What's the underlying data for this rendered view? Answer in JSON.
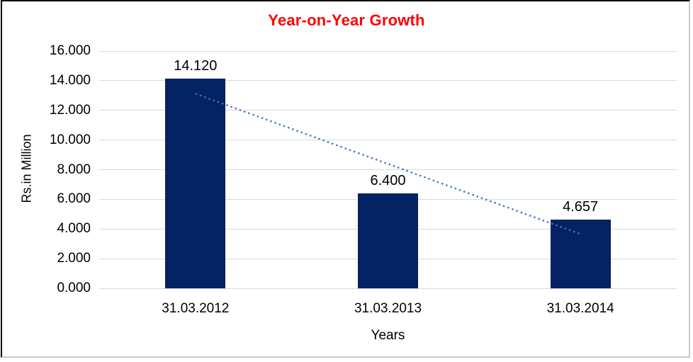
{
  "frame": {
    "background": "#ffffff",
    "border_dark": "#000000",
    "border_light": "#c9c9c9"
  },
  "chart_data": {
    "type": "bar",
    "title": "Year-on-Year Growth",
    "title_color": "#ff0000",
    "xlabel": "Years",
    "ylabel": "Rs.in Million",
    "categories": [
      "31.03.2012",
      "31.03.2013",
      "31.03.2014"
    ],
    "values": [
      14.12,
      6.4,
      4.657
    ],
    "value_labels": [
      "14.120",
      "6.400",
      "4.657"
    ],
    "ylim": [
      0,
      16
    ],
    "ytick_step": 2,
    "ytick_labels": [
      "0.000",
      "2.000",
      "4.000",
      "6.000",
      "8.000",
      "10.000",
      "12.000",
      "14.000",
      "16.000"
    ],
    "grid": true,
    "gridline_color": "#d9d9d9",
    "bar_color": "#052262",
    "legend_position": "none",
    "trendline": {
      "kind": "linear",
      "style": "dotted",
      "color": "#4472c4",
      "start_value": 13.12,
      "end_value": 3.66
    }
  }
}
